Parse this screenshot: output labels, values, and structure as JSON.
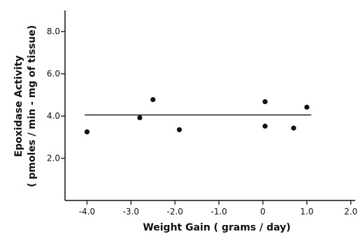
{
  "chart_data": {
    "type": "scatter",
    "xlabel": "Weight   Gain ( grams / day)",
    "ylabel_line1": "Epoxidase  Activity",
    "ylabel_line2": "( pmoles / min - mg of tissue)",
    "xlim": [
      -4.5,
      2.1
    ],
    "ylim": [
      0.0,
      9.0
    ],
    "x_ticks": [
      -4.0,
      -3.0,
      -2.0,
      -1.0,
      0.0,
      1.0,
      2.0
    ],
    "x_tick_labels": [
      "-4.0",
      "-3.0",
      "-2.0",
      "-1.0",
      "0",
      "1.0",
      "2.0"
    ],
    "y_ticks": [
      2.0,
      4.0,
      6.0,
      8.0
    ],
    "y_tick_labels": [
      "2.0",
      "4.0",
      "6.0",
      "8.0"
    ],
    "grid": false,
    "series": [
      {
        "points": [
          {
            "x": -4.0,
            "y": 3.25
          },
          {
            "x": -2.8,
            "y": 3.92
          },
          {
            "x": -2.5,
            "y": 4.78
          },
          {
            "x": -1.9,
            "y": 3.35
          },
          {
            "x": 0.05,
            "y": 4.68
          },
          {
            "x": 0.05,
            "y": 3.52
          },
          {
            "x": 0.7,
            "y": 3.43
          },
          {
            "x": 1.0,
            "y": 4.42
          }
        ]
      }
    ],
    "reference_line": {
      "y": 4.05,
      "x_from": -4.05,
      "x_to": 1.1
    }
  }
}
